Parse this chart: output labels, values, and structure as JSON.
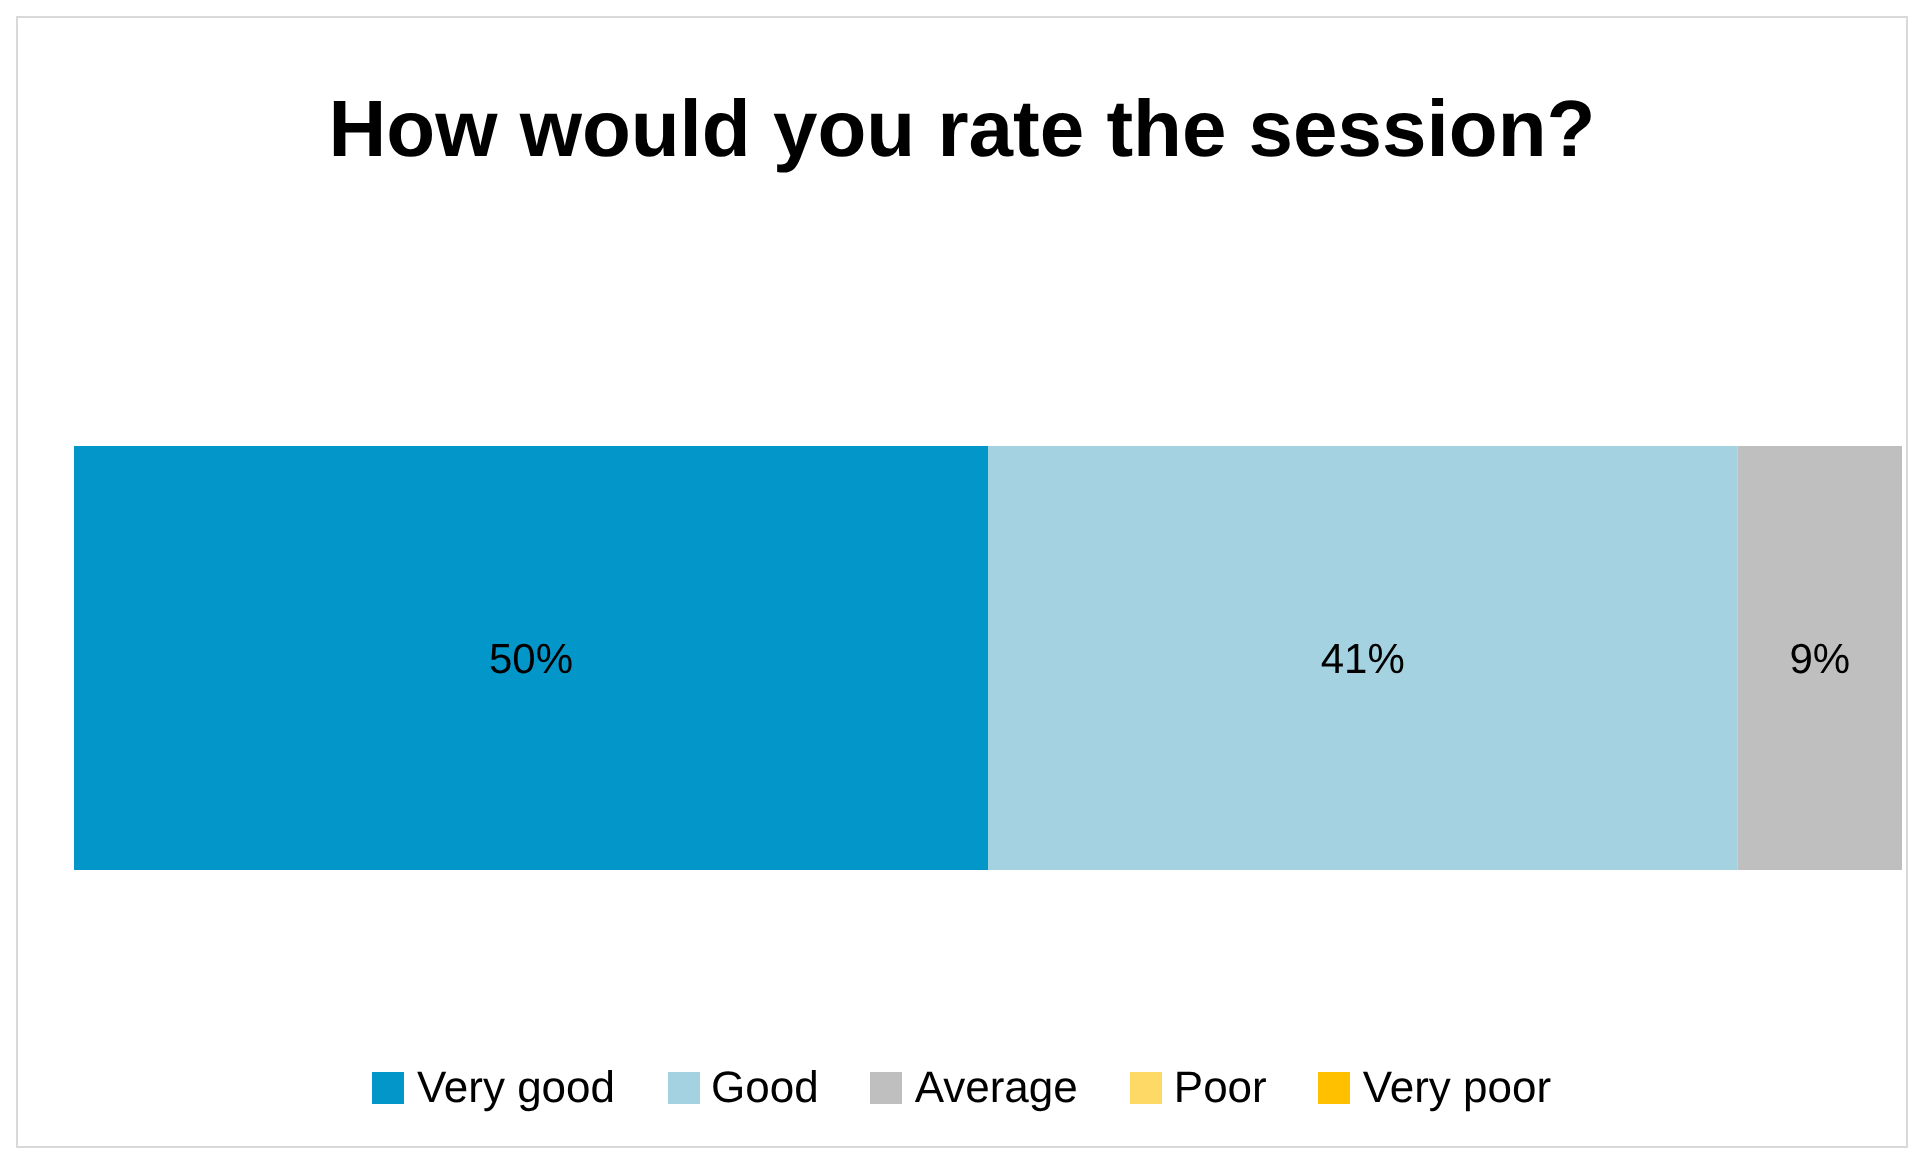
{
  "chart_data": {
    "type": "bar",
    "orientation": "horizontal",
    "stacked": true,
    "title": "How would you rate the session?",
    "categories": [
      null
    ],
    "xlim": [
      0,
      100
    ],
    "tick_labels": false,
    "grid": false,
    "legend": "bottom",
    "series": [
      {
        "name": "Very good",
        "color": "#0396c9",
        "values": [
          50
        ],
        "value_labels": [
          "50%"
        ]
      },
      {
        "name": "Good",
        "color": "#a5d2e0",
        "values": [
          41
        ],
        "value_labels": [
          "41%"
        ]
      },
      {
        "name": "Average",
        "color": "#bfbfbf",
        "values": [
          9
        ],
        "value_labels": [
          "9%"
        ]
      },
      {
        "name": "Poor",
        "color": "#ffd966",
        "values": [
          0
        ],
        "value_labels": [
          null
        ]
      },
      {
        "name": "Very poor",
        "color": "#ffc000",
        "values": [
          0
        ],
        "value_labels": [
          null
        ]
      }
    ]
  }
}
